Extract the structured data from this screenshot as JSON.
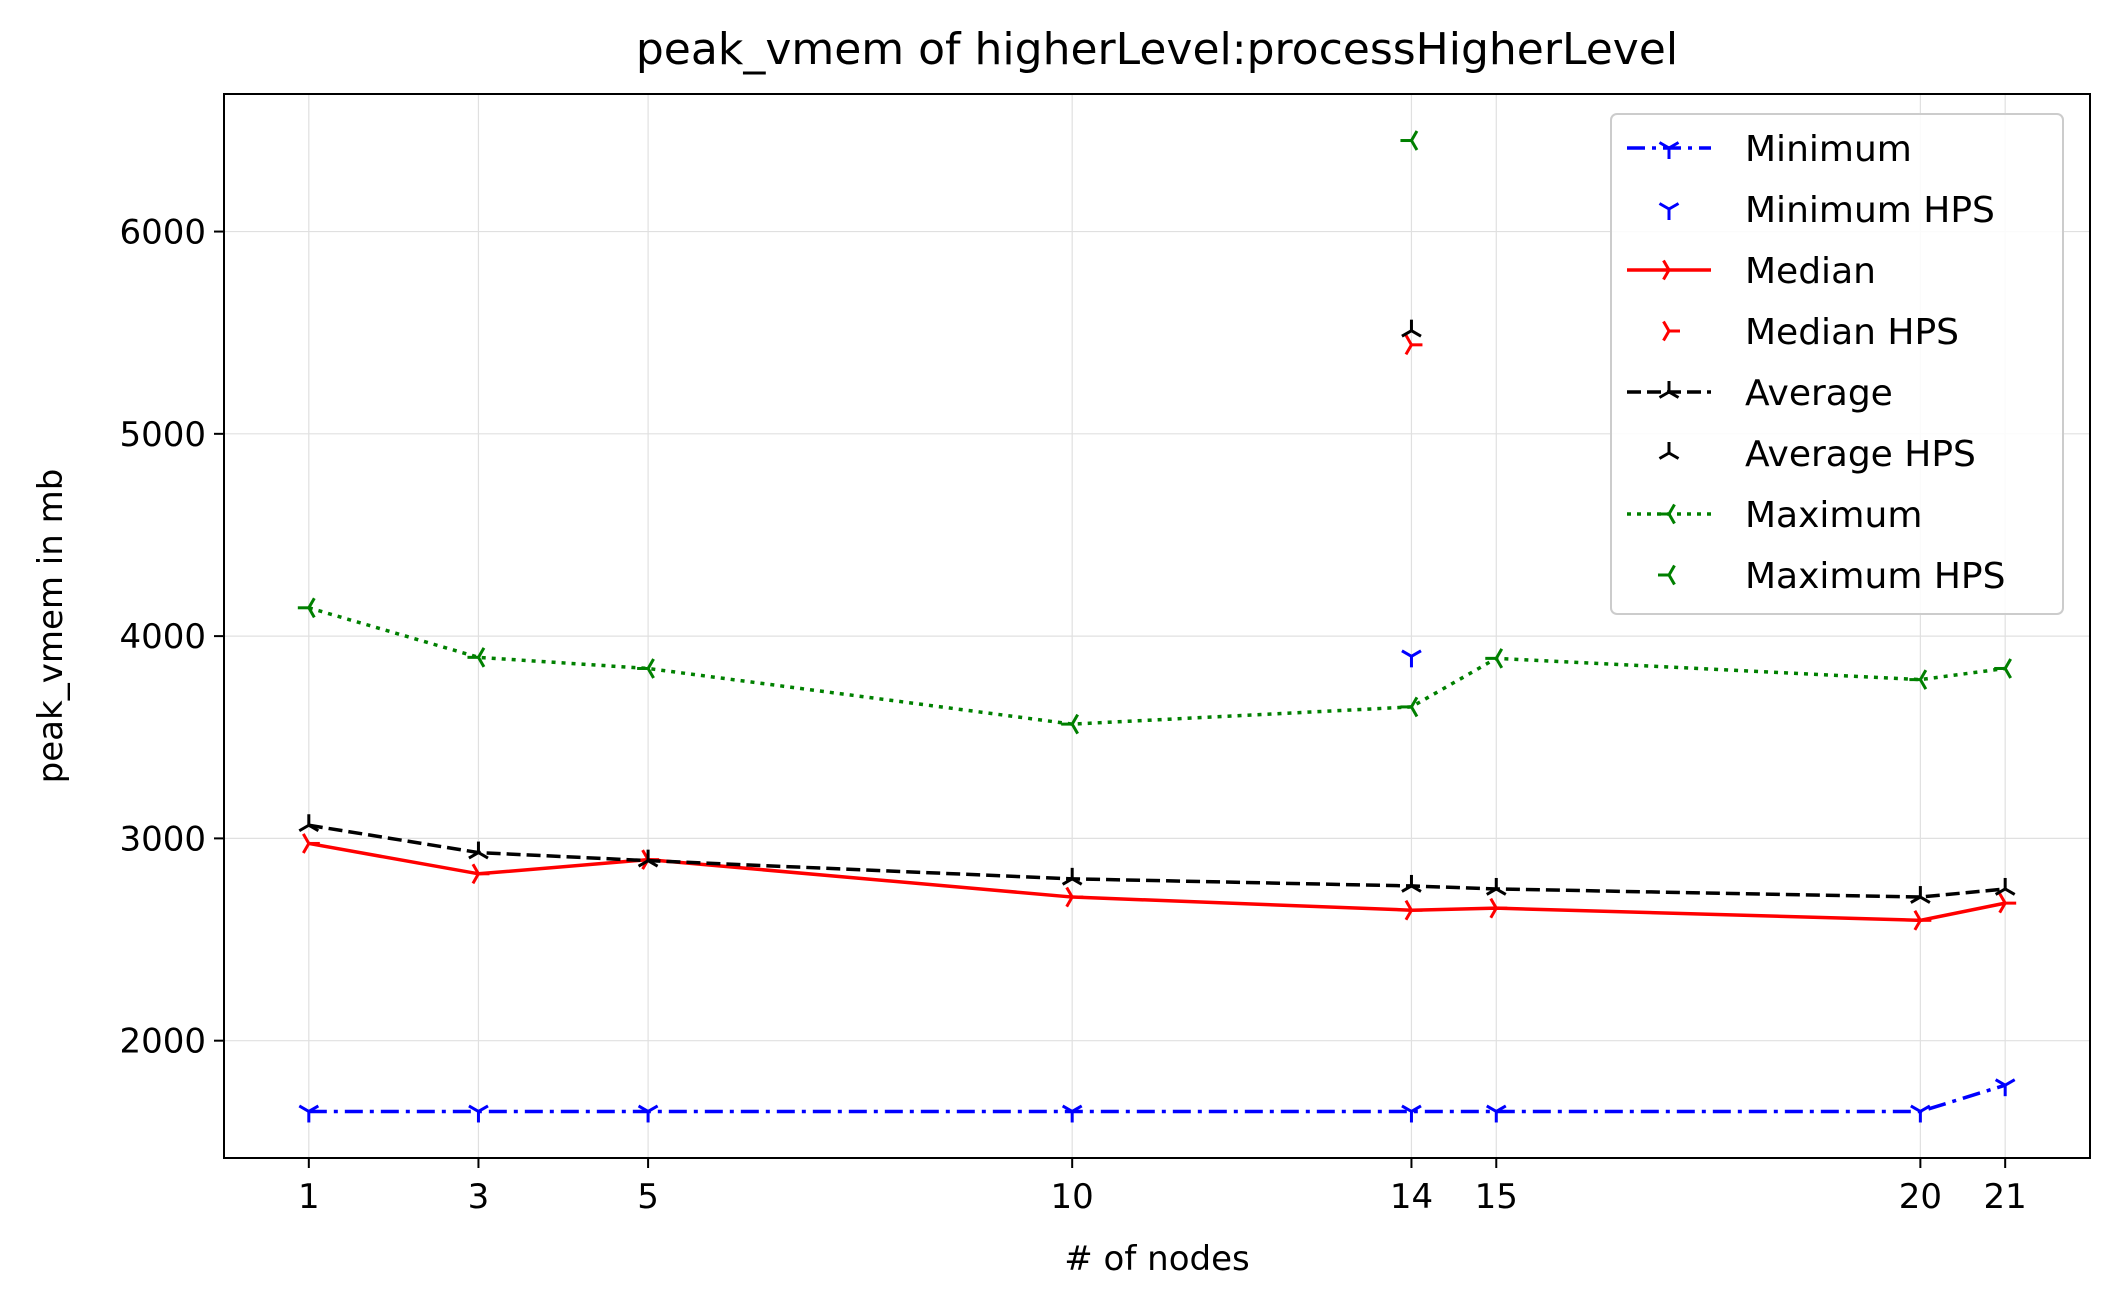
{
  "chart_data": {
    "type": "line",
    "title": "peak_vmem of higherLevel:processHigherLevel",
    "xlabel": "# of nodes",
    "ylabel": "peak_vmem in mb",
    "x": [
      1,
      3,
      5,
      10,
      14,
      15,
      20,
      21
    ],
    "xticks": [
      "1",
      "3",
      "5",
      "10",
      "14",
      "15",
      "20",
      "21"
    ],
    "xlim": [
      0,
      22
    ],
    "yticks": [
      "2000",
      "3000",
      "4000",
      "5000",
      "6000"
    ],
    "ylim": [
      1420,
      6680
    ],
    "grid": true,
    "legend_position": "top-right",
    "series": [
      {
        "name": "Minimum",
        "color": "#0000ff",
        "dash": "dashdot",
        "marker": "tri-down",
        "values": [
          1650,
          1650,
          1650,
          1650,
          1650,
          1650,
          1650,
          1780
        ]
      },
      {
        "name": "Median",
        "color": "#ff0000",
        "dash": "solid",
        "marker": "tri-right",
        "values": [
          2975,
          2825,
          2895,
          2710,
          2645,
          2655,
          2595,
          2680
        ]
      },
      {
        "name": "Average",
        "color": "#000000",
        "dash": "dashed",
        "marker": "tri-up",
        "values": [
          3065,
          2930,
          2890,
          2800,
          2765,
          2750,
          2710,
          2750
        ]
      },
      {
        "name": "Maximum",
        "color": "#008000",
        "dash": "dotted",
        "marker": "tri-left",
        "values": [
          4140,
          3895,
          3840,
          3565,
          3650,
          3890,
          3785,
          3840
        ]
      }
    ],
    "hps_points": [
      {
        "name": "Minimum HPS",
        "color": "#0000ff",
        "marker": "tri-down",
        "x": 14,
        "y": 3900
      },
      {
        "name": "Median HPS",
        "color": "#ff0000",
        "marker": "tri-right",
        "x": 14,
        "y": 5440
      },
      {
        "name": "Average HPS",
        "color": "#000000",
        "marker": "tri-up",
        "x": 14,
        "y": 5510
      },
      {
        "name": "Maximum HPS",
        "color": "#008000",
        "marker": "tri-left",
        "x": 14,
        "y": 6450
      }
    ],
    "legend": [
      {
        "label": "Minimum",
        "color": "#0000ff",
        "dash": "dashdot",
        "marker": "tri-down",
        "line": true
      },
      {
        "label": "Minimum HPS",
        "color": "#0000ff",
        "marker": "tri-down",
        "line": false
      },
      {
        "label": "Median",
        "color": "#ff0000",
        "dash": "solid",
        "marker": "tri-right",
        "line": true
      },
      {
        "label": "Median HPS",
        "color": "#ff0000",
        "marker": "tri-right",
        "line": false
      },
      {
        "label": "Average",
        "color": "#000000",
        "dash": "dashed",
        "marker": "tri-up",
        "line": true
      },
      {
        "label": "Average HPS",
        "color": "#000000",
        "marker": "tri-up",
        "line": false
      },
      {
        "label": "Maximum",
        "color": "#008000",
        "dash": "dotted",
        "marker": "tri-left",
        "line": true
      },
      {
        "label": "Maximum HPS",
        "color": "#008000",
        "marker": "tri-left",
        "line": false
      }
    ]
  }
}
